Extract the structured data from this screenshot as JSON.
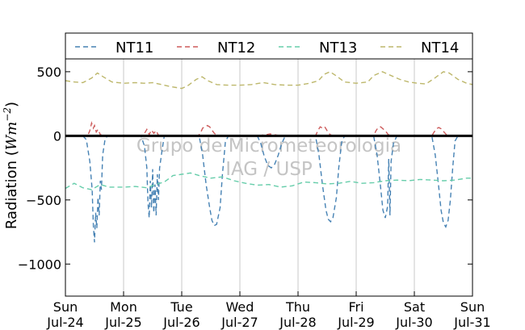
{
  "chart_data": {
    "type": "line",
    "title": "",
    "xlabel": "",
    "ylabel": "Radiation ($Wm^{-2}$)",
    "ylabel_parts": {
      "base": "Radiation (",
      "unit": "Wm",
      "exp": "−2",
      "close": ")"
    },
    "ylim": [
      -1250,
      600
    ],
    "xlim_days": [
      0,
      7
    ],
    "grid": "vertical",
    "legend_position": "top",
    "yticks": [
      {
        "value": 500,
        "label": "500"
      },
      {
        "value": 0,
        "label": "0"
      },
      {
        "value": -500,
        "label": "−500"
      },
      {
        "value": -1000,
        "label": "−1000"
      }
    ],
    "xticks": [
      {
        "day": 0,
        "line1": "Sun",
        "line2": "Jul-24"
      },
      {
        "day": 1,
        "line1": "Mon",
        "line2": "Jul-25"
      },
      {
        "day": 2,
        "line1": "Tue",
        "line2": "Jul-26"
      },
      {
        "day": 3,
        "line1": "Wed",
        "line2": "Jul-27"
      },
      {
        "day": 4,
        "line1": "Thu",
        "line2": "Jul-28"
      },
      {
        "day": 5,
        "line1": "Fri",
        "line2": "Jul-29"
      },
      {
        "day": 6,
        "line1": "Sat",
        "line2": "Jul-30"
      },
      {
        "day": 7,
        "line1": "Sun",
        "line2": "Jul-31"
      }
    ],
    "zero_line": true,
    "watermark": [
      "Grupo de Micrometeorologia",
      "IAG / USP"
    ],
    "series": [
      {
        "name": "NT11",
        "color": "#4682b4",
        "points": [
          [
            0.3,
            0
          ],
          [
            0.36,
            -30
          ],
          [
            0.42,
            -200
          ],
          [
            0.46,
            -420
          ],
          [
            0.48,
            -700
          ],
          [
            0.5,
            -830
          ],
          [
            0.52,
            -600
          ],
          [
            0.54,
            -720
          ],
          [
            0.56,
            -480
          ],
          [
            0.58,
            -620
          ],
          [
            0.6,
            -350
          ],
          [
            0.62,
            -420
          ],
          [
            0.64,
            -150
          ],
          [
            0.68,
            -30
          ],
          [
            0.72,
            0
          ],
          [
            1.3,
            0
          ],
          [
            1.36,
            -80
          ],
          [
            1.4,
            -250
          ],
          [
            1.42,
            -520
          ],
          [
            1.44,
            -640
          ],
          [
            1.46,
            -350
          ],
          [
            1.48,
            -560
          ],
          [
            1.5,
            -260
          ],
          [
            1.52,
            -600
          ],
          [
            1.54,
            -380
          ],
          [
            1.56,
            -620
          ],
          [
            1.58,
            -300
          ],
          [
            1.6,
            -500
          ],
          [
            1.62,
            -250
          ],
          [
            1.66,
            -120
          ],
          [
            1.7,
            0
          ],
          [
            2.3,
            0
          ],
          [
            2.36,
            -150
          ],
          [
            2.42,
            -380
          ],
          [
            2.48,
            -560
          ],
          [
            2.52,
            -660
          ],
          [
            2.56,
            -700
          ],
          [
            2.6,
            -690
          ],
          [
            2.66,
            -560
          ],
          [
            2.7,
            -300
          ],
          [
            2.75,
            -50
          ],
          [
            2.8,
            0
          ],
          [
            3.3,
            0
          ],
          [
            3.36,
            -60
          ],
          [
            3.42,
            -160
          ],
          [
            3.48,
            -230
          ],
          [
            3.54,
            -250
          ],
          [
            3.6,
            -220
          ],
          [
            3.66,
            -150
          ],
          [
            3.72,
            -60
          ],
          [
            3.78,
            0
          ],
          [
            4.3,
            0
          ],
          [
            4.36,
            -150
          ],
          [
            4.42,
            -380
          ],
          [
            4.48,
            -580
          ],
          [
            4.52,
            -650
          ],
          [
            4.56,
            -670
          ],
          [
            4.6,
            -640
          ],
          [
            4.66,
            -480
          ],
          [
            4.7,
            -250
          ],
          [
            4.75,
            -50
          ],
          [
            4.8,
            0
          ],
          [
            5.3,
            0
          ],
          [
            5.36,
            -150
          ],
          [
            5.42,
            -400
          ],
          [
            5.46,
            -580
          ],
          [
            5.5,
            -640
          ],
          [
            5.54,
            -550
          ],
          [
            5.56,
            -180
          ],
          [
            5.58,
            -620
          ],
          [
            5.6,
            -200
          ],
          [
            5.64,
            -60
          ],
          [
            5.7,
            0
          ],
          [
            6.3,
            0
          ],
          [
            6.36,
            -150
          ],
          [
            6.42,
            -400
          ],
          [
            6.46,
            -580
          ],
          [
            6.5,
            -680
          ],
          [
            6.54,
            -710
          ],
          [
            6.58,
            -660
          ],
          [
            6.62,
            -500
          ],
          [
            6.66,
            -250
          ],
          [
            6.7,
            -40
          ],
          [
            6.75,
            0
          ],
          [
            7.0,
            0
          ]
        ]
      },
      {
        "name": "NT12",
        "color": "#cd5c5c",
        "points": [
          [
            0,
            0
          ],
          [
            0.38,
            0
          ],
          [
            0.42,
            40
          ],
          [
            0.45,
            100
          ],
          [
            0.48,
            60
          ],
          [
            0.5,
            80
          ],
          [
            0.53,
            30
          ],
          [
            0.56,
            50
          ],
          [
            0.6,
            10
          ],
          [
            0.65,
            0
          ],
          [
            1.3,
            0
          ],
          [
            1.36,
            20
          ],
          [
            1.4,
            50
          ],
          [
            1.44,
            10
          ],
          [
            1.48,
            45
          ],
          [
            1.52,
            20
          ],
          [
            1.56,
            40
          ],
          [
            1.6,
            5
          ],
          [
            1.65,
            0
          ],
          [
            2.28,
            0
          ],
          [
            2.32,
            20
          ],
          [
            2.36,
            60
          ],
          [
            2.4,
            70
          ],
          [
            2.44,
            80
          ],
          [
            2.48,
            70
          ],
          [
            2.52,
            45
          ],
          [
            2.56,
            20
          ],
          [
            2.6,
            5
          ],
          [
            2.65,
            0
          ],
          [
            3.3,
            0
          ],
          [
            3.38,
            5
          ],
          [
            3.46,
            10
          ],
          [
            3.52,
            15
          ],
          [
            3.58,
            10
          ],
          [
            3.64,
            5
          ],
          [
            3.7,
            0
          ],
          [
            4.3,
            0
          ],
          [
            4.34,
            40
          ],
          [
            4.38,
            70
          ],
          [
            4.42,
            60
          ],
          [
            4.46,
            70
          ],
          [
            4.5,
            40
          ],
          [
            4.55,
            10
          ],
          [
            4.6,
            0
          ],
          [
            5.3,
            0
          ],
          [
            5.34,
            40
          ],
          [
            5.38,
            65
          ],
          [
            5.42,
            70
          ],
          [
            5.46,
            55
          ],
          [
            5.5,
            40
          ],
          [
            5.55,
            10
          ],
          [
            5.6,
            0
          ],
          [
            6.3,
            0
          ],
          [
            6.34,
            30
          ],
          [
            6.38,
            55
          ],
          [
            6.42,
            65
          ],
          [
            6.46,
            55
          ],
          [
            6.5,
            35
          ],
          [
            6.55,
            10
          ],
          [
            6.6,
            0
          ],
          [
            7.0,
            0
          ]
        ]
      },
      {
        "name": "NT13",
        "color": "#66cdaa",
        "points": [
          [
            0,
            -410
          ],
          [
            0.15,
            -370
          ],
          [
            0.3,
            -405
          ],
          [
            0.45,
            -420
          ],
          [
            0.6,
            -380
          ],
          [
            0.75,
            -400
          ],
          [
            1.0,
            -400
          ],
          [
            1.2,
            -395
          ],
          [
            1.4,
            -405
          ],
          [
            1.55,
            -380
          ],
          [
            1.7,
            -360
          ],
          [
            1.85,
            -310
          ],
          [
            2.0,
            -300
          ],
          [
            2.15,
            -290
          ],
          [
            2.3,
            -310
          ],
          [
            2.5,
            -330
          ],
          [
            2.7,
            -320
          ],
          [
            2.9,
            -350
          ],
          [
            3.1,
            -370
          ],
          [
            3.3,
            -385
          ],
          [
            3.5,
            -380
          ],
          [
            3.7,
            -400
          ],
          [
            3.9,
            -390
          ],
          [
            4.1,
            -360
          ],
          [
            4.3,
            -365
          ],
          [
            4.5,
            -375
          ],
          [
            4.7,
            -370
          ],
          [
            4.9,
            -355
          ],
          [
            5.1,
            -370
          ],
          [
            5.3,
            -365
          ],
          [
            5.5,
            -350
          ],
          [
            5.7,
            -345
          ],
          [
            5.9,
            -350
          ],
          [
            6.1,
            -340
          ],
          [
            6.3,
            -345
          ],
          [
            6.5,
            -350
          ],
          [
            6.7,
            -345
          ],
          [
            6.9,
            -330
          ],
          [
            7.0,
            -330
          ]
        ]
      },
      {
        "name": "NT14",
        "color": "#bdb76b",
        "points": [
          [
            0,
            430
          ],
          [
            0.15,
            420
          ],
          [
            0.3,
            415
          ],
          [
            0.45,
            450
          ],
          [
            0.55,
            490
          ],
          [
            0.65,
            460
          ],
          [
            0.8,
            420
          ],
          [
            1.0,
            410
          ],
          [
            1.2,
            415
          ],
          [
            1.35,
            410
          ],
          [
            1.5,
            415
          ],
          [
            1.65,
            400
          ],
          [
            1.8,
            385
          ],
          [
            2.0,
            370
          ],
          [
            2.1,
            390
          ],
          [
            2.25,
            440
          ],
          [
            2.35,
            460
          ],
          [
            2.45,
            430
          ],
          [
            2.6,
            400
          ],
          [
            2.8,
            395
          ],
          [
            3.0,
            395
          ],
          [
            3.2,
            400
          ],
          [
            3.4,
            415
          ],
          [
            3.6,
            400
          ],
          [
            3.8,
            395
          ],
          [
            4.0,
            395
          ],
          [
            4.2,
            410
          ],
          [
            4.35,
            430
          ],
          [
            4.45,
            480
          ],
          [
            4.55,
            500
          ],
          [
            4.65,
            470
          ],
          [
            4.8,
            420
          ],
          [
            5.0,
            410
          ],
          [
            5.2,
            420
          ],
          [
            5.3,
            470
          ],
          [
            5.45,
            500
          ],
          [
            5.6,
            470
          ],
          [
            5.75,
            440
          ],
          [
            5.9,
            420
          ],
          [
            6.05,
            410
          ],
          [
            6.2,
            405
          ],
          [
            6.35,
            450
          ],
          [
            6.5,
            500
          ],
          [
            6.6,
            490
          ],
          [
            6.75,
            440
          ],
          [
            6.9,
            410
          ],
          [
            7.0,
            400
          ]
        ]
      }
    ]
  }
}
